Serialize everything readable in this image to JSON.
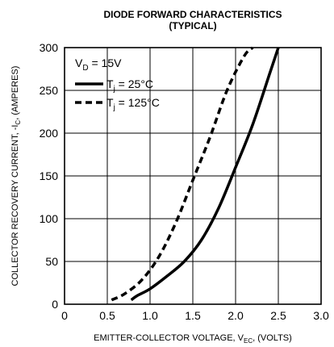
{
  "chart_data": {
    "type": "line",
    "title": "DIODE FORWARD CHARACTERISTICS",
    "subtitle": "(TYPICAL)",
    "xlabel": {
      "text": "EMITTER-COLLECTOR VOLTAGE, V",
      "sub": "EC",
      "tail": ", (VOLTS)"
    },
    "ylabel": {
      "text": "COLLECTOR RECOVERY CURRENT, -I",
      "sub": "C",
      "tail": ", (AMPERES)"
    },
    "xlim": [
      0,
      3.0
    ],
    "ylim": [
      0,
      300
    ],
    "xticks": [
      "0",
      "0.5",
      "1.0",
      "1.5",
      "2.0",
      "2.5",
      "3.0"
    ],
    "yticks": [
      "0",
      "50",
      "100",
      "150",
      "200",
      "250",
      "300"
    ],
    "grid": true,
    "legend_placement": "top-left",
    "annotation": {
      "text": "V",
      "sub": "D",
      "tail": " = 15V"
    },
    "series": [
      {
        "name": "Tj = 25°C",
        "label_main": "T",
        "label_sub": "j",
        "label_tail": " = 25°C",
        "style": "solid",
        "x": [
          0.78,
          0.85,
          1.0,
          1.2,
          1.4,
          1.6,
          1.8,
          2.0,
          2.2,
          2.4,
          2.5
        ],
        "y": [
          5,
          10,
          18,
          33,
          50,
          75,
          112,
          160,
          210,
          270,
          300
        ]
      },
      {
        "name": "Tj = 125°C",
        "label_main": "T",
        "label_sub": "j",
        "label_tail": " = 125°C",
        "style": "dashed",
        "x": [
          0.55,
          0.7,
          0.9,
          1.1,
          1.3,
          1.5,
          1.7,
          1.9,
          2.1,
          2.2
        ],
        "y": [
          5,
          12,
          28,
          55,
          95,
          145,
          195,
          250,
          290,
          300
        ]
      }
    ]
  }
}
